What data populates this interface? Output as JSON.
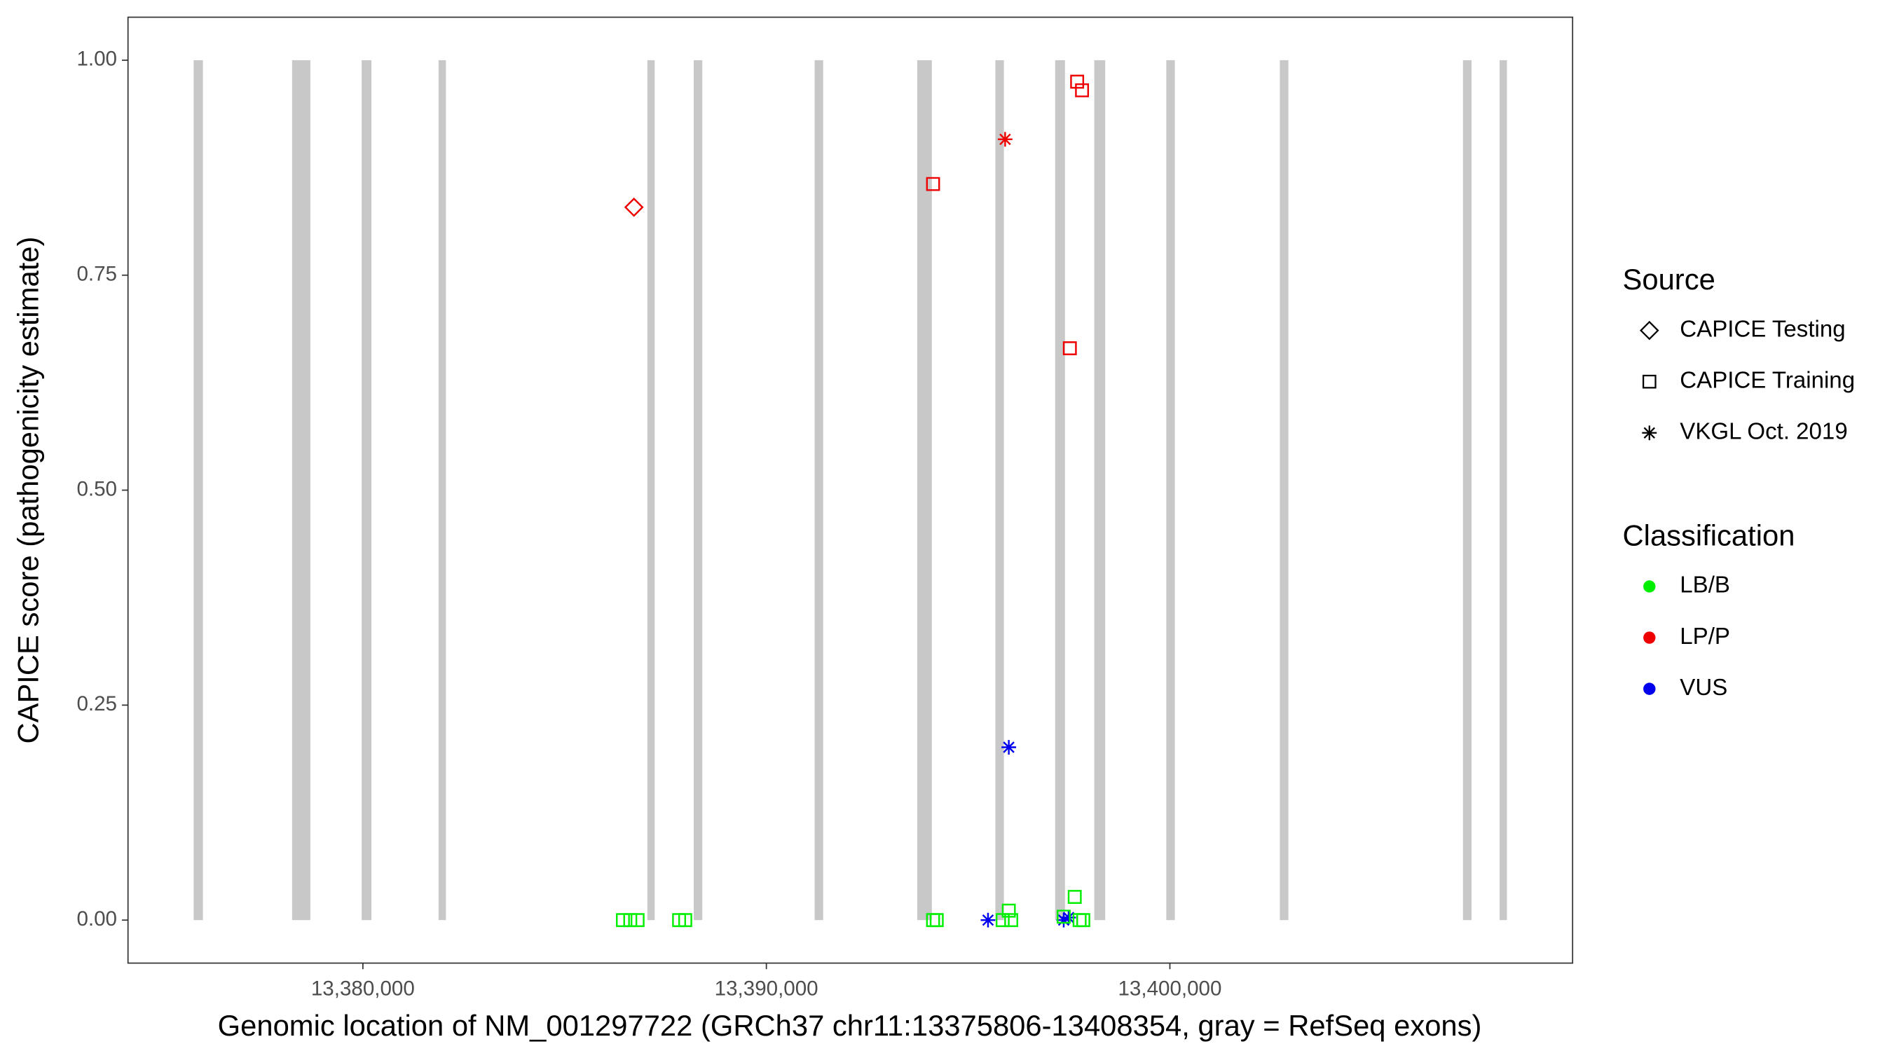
{
  "chart_data": {
    "type": "scatter",
    "x_label": "Genomic location of NM_001297722 (GRCh37 chr11:13375806-13408354, gray = RefSeq exons)",
    "y_label": "CAPICE score (pathogenicity estimate)",
    "xlim": [
      13374179,
      13409981
    ],
    "ylim": [
      -0.05,
      1.05
    ],
    "xticks": [
      {
        "value": 13380000,
        "label": "13,380,000"
      },
      {
        "value": 13390000,
        "label": "13,390,000"
      },
      {
        "value": 13400000,
        "label": "13,400,000"
      }
    ],
    "yticks": [
      {
        "value": 0,
        "label": "0.00"
      },
      {
        "value": 0.25,
        "label": "0.25"
      },
      {
        "value": 0.5,
        "label": "0.50"
      },
      {
        "value": 0.75,
        "label": "0.75"
      },
      {
        "value": 1,
        "label": "1.00"
      }
    ],
    "exon_color": "#c8c8c8",
    "exons": [
      [
        13375806,
        13376036
      ],
      [
        13378245,
        13378699
      ],
      [
        13379970,
        13380212
      ],
      [
        13381876,
        13382058
      ],
      [
        13387051,
        13387232
      ],
      [
        13388200,
        13388412
      ],
      [
        13391196,
        13391408
      ],
      [
        13393738,
        13394101
      ],
      [
        13395675,
        13395887
      ],
      [
        13397157,
        13397400
      ],
      [
        13398126,
        13398398
      ],
      [
        13399911,
        13400123
      ],
      [
        13402725,
        13402937
      ],
      [
        13407264,
        13407476
      ],
      [
        13408172,
        13408354
      ]
    ],
    "source_title": "Source",
    "sources": [
      {
        "name": "CAPICE Testing",
        "shape": "diamond"
      },
      {
        "name": "CAPICE Training",
        "shape": "square"
      },
      {
        "name": "VKGL Oct. 2019",
        "shape": "asterisk"
      }
    ],
    "classification_title": "Classification",
    "classifications": [
      {
        "name": "LB/B",
        "color": "#00ee00"
      },
      {
        "name": "LP/P",
        "color": "#ee0000"
      },
      {
        "name": "VUS",
        "color": "#0000ee"
      }
    ],
    "series": [
      {
        "source": "CAPICE Testing",
        "classification": "LP/P",
        "x": [
          13386718
        ],
        "values": [
          0.829
        ]
      },
      {
        "source": "CAPICE Training",
        "classification": "LP/P",
        "x": [
          13394131,
          13397702,
          13397823,
          13397521
        ],
        "values": [
          0.856,
          0.975,
          0.965,
          0.665
        ]
      },
      {
        "source": "VKGL Oct. 2019",
        "classification": "LP/P",
        "x": [
          13395917
        ],
        "values": [
          0.908
        ]
      },
      {
        "source": "VKGL Oct. 2019",
        "classification": "VUS",
        "x": [
          13396008,
          13395493,
          13397369,
          13397490
        ],
        "values": [
          0.201,
          0,
          0,
          0.003
        ]
      },
      {
        "source": "CAPICE Training",
        "classification": "LB/B",
        "x": [
          13386445,
          13386627,
          13386808,
          13387837,
          13387989,
          13394131,
          13394222,
          13396008,
          13395856,
          13396068,
          13397642,
          13397763,
          13397854,
          13397369
        ],
        "values": [
          0,
          0,
          0,
          0,
          0,
          0,
          0,
          0.011,
          0,
          0,
          0.027,
          0,
          0,
          0.004
        ]
      }
    ]
  }
}
